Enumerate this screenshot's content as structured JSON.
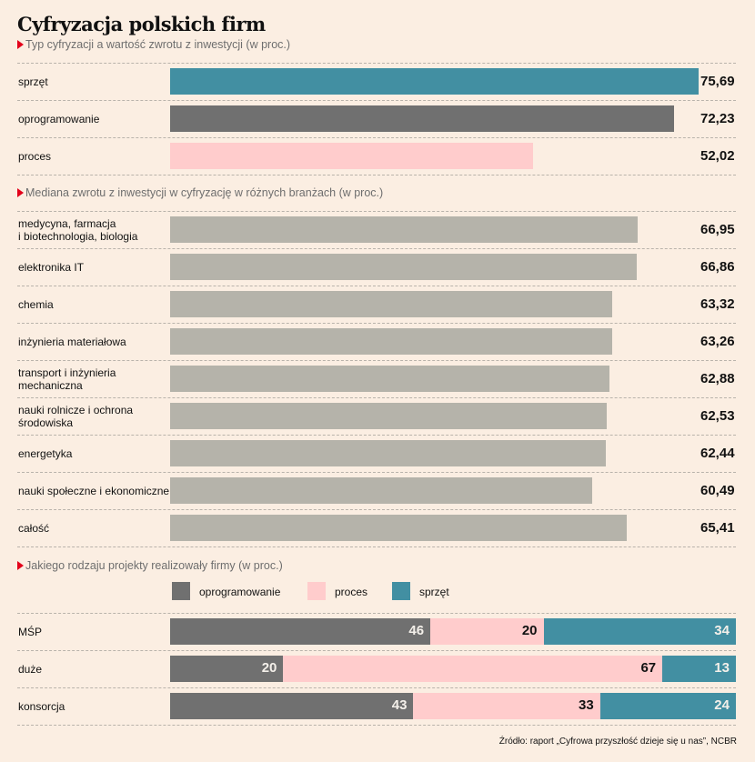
{
  "title": "Cyfryzacja polskich firm",
  "source": "Źródło: raport „Cyfrowa przyszłość dzieje się u nas”, NCBR",
  "colors": {
    "sprzet": "#428fa2",
    "oprogramowanie": "#707070",
    "proces": "#ffcccc",
    "industry": "#b5b3aa",
    "accent": "#e3001b",
    "background": "#fbeee2"
  },
  "chart_data": [
    {
      "type": "bar",
      "orientation": "horizontal",
      "title": "Typ cyfryzacji a wartość zwrotu z inwestycji (w proc.)",
      "categories": [
        "sprzęt",
        "oprogramowanie",
        "proces"
      ],
      "values": [
        75.69,
        72.23,
        52.02
      ],
      "value_labels": [
        "75,69",
        "72,23",
        "52,02"
      ],
      "bar_colors": [
        "#428fa2",
        "#707070",
        "#ffcccc"
      ],
      "xlim": [
        0,
        81
      ]
    },
    {
      "type": "bar",
      "orientation": "horizontal",
      "title": "Mediana zwrotu z inwestycji w cyfryzację w różnych branżach (w proc.)",
      "categories": [
        "medycyna, farmacja\ni biotechnologia, biologia",
        "elektronika IT",
        "chemia",
        "inżynieria materiałowa",
        "transport i inżynieria\nmechaniczna",
        "nauki rolnicze i ochrona\nśrodowiska",
        "energetyka",
        "nauki społeczne i ekonomiczne",
        "całość"
      ],
      "values": [
        66.95,
        66.86,
        63.32,
        63.26,
        62.88,
        62.53,
        62.44,
        60.49,
        65.41
      ],
      "value_labels": [
        "66,95",
        "66,86",
        "63,32",
        "63,26",
        "62,88",
        "62,53",
        "62,44",
        "60,49",
        "65,41"
      ],
      "bar_color": "#b5b3aa",
      "xlim": [
        0,
        81
      ]
    },
    {
      "type": "bar",
      "orientation": "horizontal",
      "stacked": true,
      "title": "Jakiego rodzaju projekty realizowały firmy (w proc.)",
      "categories": [
        "MŚP",
        "duże",
        "konsorcja"
      ],
      "series": [
        {
          "name": "oprogramowanie",
          "color": "#707070",
          "values": [
            46,
            20,
            43
          ]
        },
        {
          "name": "proces",
          "color": "#ffcccc",
          "values": [
            20,
            67,
            33
          ]
        },
        {
          "name": "sprzęt",
          "color": "#428fa2",
          "values": [
            34,
            13,
            24
          ]
        }
      ],
      "legend": [
        "oprogramowanie",
        "proces",
        "sprzęt"
      ],
      "legend_position": "top",
      "xlim": [
        0,
        100
      ]
    }
  ]
}
